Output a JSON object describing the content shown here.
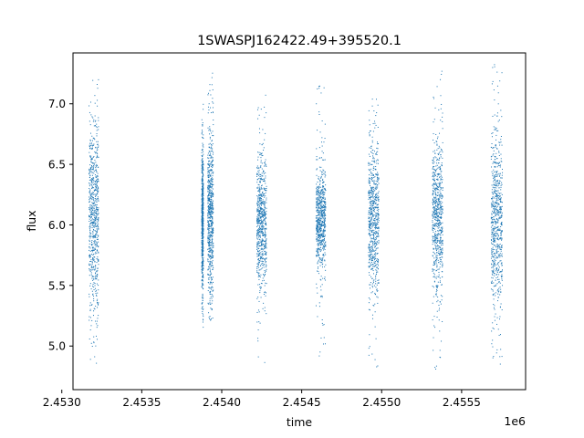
{
  "chart_data": {
    "type": "scatter",
    "title": "1SWASPJ162422.49+395520.1",
    "xlabel": "time",
    "ylabel": "flux",
    "x_offset_label": "1e6",
    "xlim": [
      2.45307,
      2.4559
    ],
    "ylim": [
      4.64,
      7.42
    ],
    "x_ticks": [
      2.453,
      2.4535,
      2.454,
      2.4545,
      2.455,
      2.4555
    ],
    "x_tick_labels": [
      "2.4530",
      "2.4535",
      "2.4540",
      "2.4545",
      "2.4550",
      "2.4555"
    ],
    "y_ticks": [
      5.0,
      5.5,
      6.0,
      6.5,
      7.0
    ],
    "y_tick_labels": [
      "5.0",
      "5.5",
      "6.0",
      "6.5",
      "7.0"
    ],
    "grid": false,
    "marker_color": "#1f77b4",
    "series": [
      {
        "clusters": [
          {
            "x_center": 2.4532,
            "x_width": 6e-05,
            "y_center": 6.05,
            "y_spread": 0.4,
            "y_min": 4.8,
            "y_max": 7.3
          },
          {
            "x_center": 2.45388,
            "x_width": 1e-05,
            "y_center": 6.0,
            "y_spread": 0.3,
            "y_min": 5.15,
            "y_max": 7.0
          },
          {
            "x_center": 2.45393,
            "x_width": 3.5e-05,
            "y_center": 6.05,
            "y_spread": 0.35,
            "y_min": 5.2,
            "y_max": 7.3
          },
          {
            "x_center": 2.45425,
            "x_width": 6e-05,
            "y_center": 6.0,
            "y_spread": 0.28,
            "y_min": 4.8,
            "y_max": 7.1
          },
          {
            "x_center": 2.45462,
            "x_width": 6e-05,
            "y_center": 6.02,
            "y_spread": 0.22,
            "y_min": 4.9,
            "y_max": 7.15
          },
          {
            "x_center": 2.45495,
            "x_width": 6.5e-05,
            "y_center": 6.05,
            "y_spread": 0.3,
            "y_min": 4.8,
            "y_max": 7.2
          },
          {
            "x_center": 2.45535,
            "x_width": 6.5e-05,
            "y_center": 6.05,
            "y_spread": 0.32,
            "y_min": 4.78,
            "y_max": 7.3
          },
          {
            "x_center": 2.45572,
            "x_width": 7e-05,
            "y_center": 6.0,
            "y_spread": 0.38,
            "y_min": 4.78,
            "y_max": 7.33
          }
        ]
      }
    ]
  }
}
